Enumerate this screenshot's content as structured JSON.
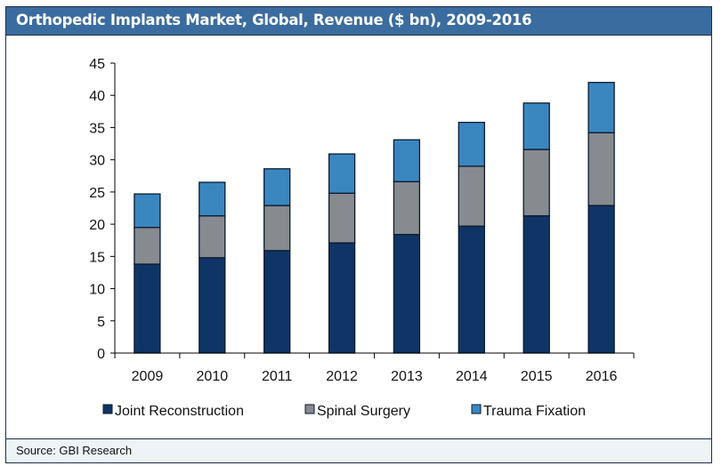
{
  "header": {
    "title": "Orthopedic Implants Market, Global, Revenue ($ bn), 2009-2016"
  },
  "footer": {
    "source": "Source: GBI Research"
  },
  "chart_data": {
    "type": "bar",
    "stacked": true,
    "title": "Orthopedic Implants Market, Global, Revenue ($ bn), 2009-2016",
    "xlabel": "",
    "ylabel": "",
    "categories": [
      "2009",
      "2010",
      "2011",
      "2012",
      "2013",
      "2014",
      "2015",
      "2016"
    ],
    "series": [
      {
        "name": "Joint Reconstruction",
        "color": "#0f3566",
        "values": [
          13.8,
          14.8,
          15.9,
          17.1,
          18.4,
          19.7,
          21.3,
          22.9
        ]
      },
      {
        "name": "Spinal Surgery",
        "color": "#878a8e",
        "values": [
          5.7,
          6.5,
          7.0,
          7.7,
          8.2,
          9.3,
          10.3,
          11.3
        ]
      },
      {
        "name": "Trauma Fixation",
        "color": "#3a87c0",
        "values": [
          5.2,
          5.2,
          5.7,
          6.1,
          6.5,
          6.8,
          7.2,
          7.8
        ]
      }
    ],
    "ylim": [
      0,
      45
    ],
    "yticks": [
      0,
      5,
      10,
      15,
      20,
      25,
      30,
      35,
      40,
      45
    ],
    "grid": false,
    "legend_position": "bottom"
  }
}
